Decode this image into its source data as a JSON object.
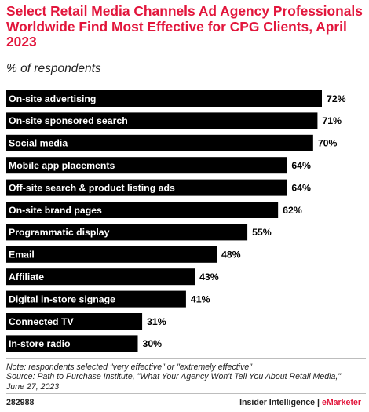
{
  "header": {
    "title": "Select Retail Media Channels Ad Agency Professionals Worldwide Find Most Effective for CPG Clients, April 2023",
    "subtitle": "% of respondents"
  },
  "chart_data": {
    "type": "bar",
    "orientation": "horizontal",
    "title": "Select Retail Media Channels Ad Agency Professionals Worldwide Find Most Effective for CPG Clients, April 2023",
    "subtitle": "% of respondents",
    "unit": "%",
    "categories": [
      "On-site advertising",
      "On-site sponsored search",
      "Social media",
      "Mobile app placements",
      "Off-site search & product listing ads",
      "On-site brand pages",
      "Programmatic display",
      "Email",
      "Affiliate",
      "Digital in-store signage",
      "Connected TV",
      "In-store radio"
    ],
    "values": [
      72,
      71,
      70,
      64,
      64,
      62,
      55,
      48,
      43,
      41,
      31,
      30
    ],
    "value_labels": [
      "72%",
      "71%",
      "70%",
      "64%",
      "64%",
      "62%",
      "55%",
      "48%",
      "43%",
      "41%",
      "31%",
      "30%"
    ],
    "xlim": [
      0,
      72
    ],
    "grid": false,
    "bar_color": "#000000"
  },
  "footer": {
    "note_lines": [
      "Note: respondents selected \"very effective\" or \"extremely effective\"",
      "Source: Path to Purchase Institute, \"What Your Agency Won't Tell You About Retail Media,\"",
      "June 27, 2023"
    ],
    "chart_id": "282988",
    "brand_left": "Insider Intelligence",
    "brand_separator": " | ",
    "brand_right": "eMarketer"
  },
  "colors": {
    "accent": "#e2163c",
    "bar": "#000000",
    "bar_text": "#ffffff",
    "rule": "#bdbdbd"
  }
}
